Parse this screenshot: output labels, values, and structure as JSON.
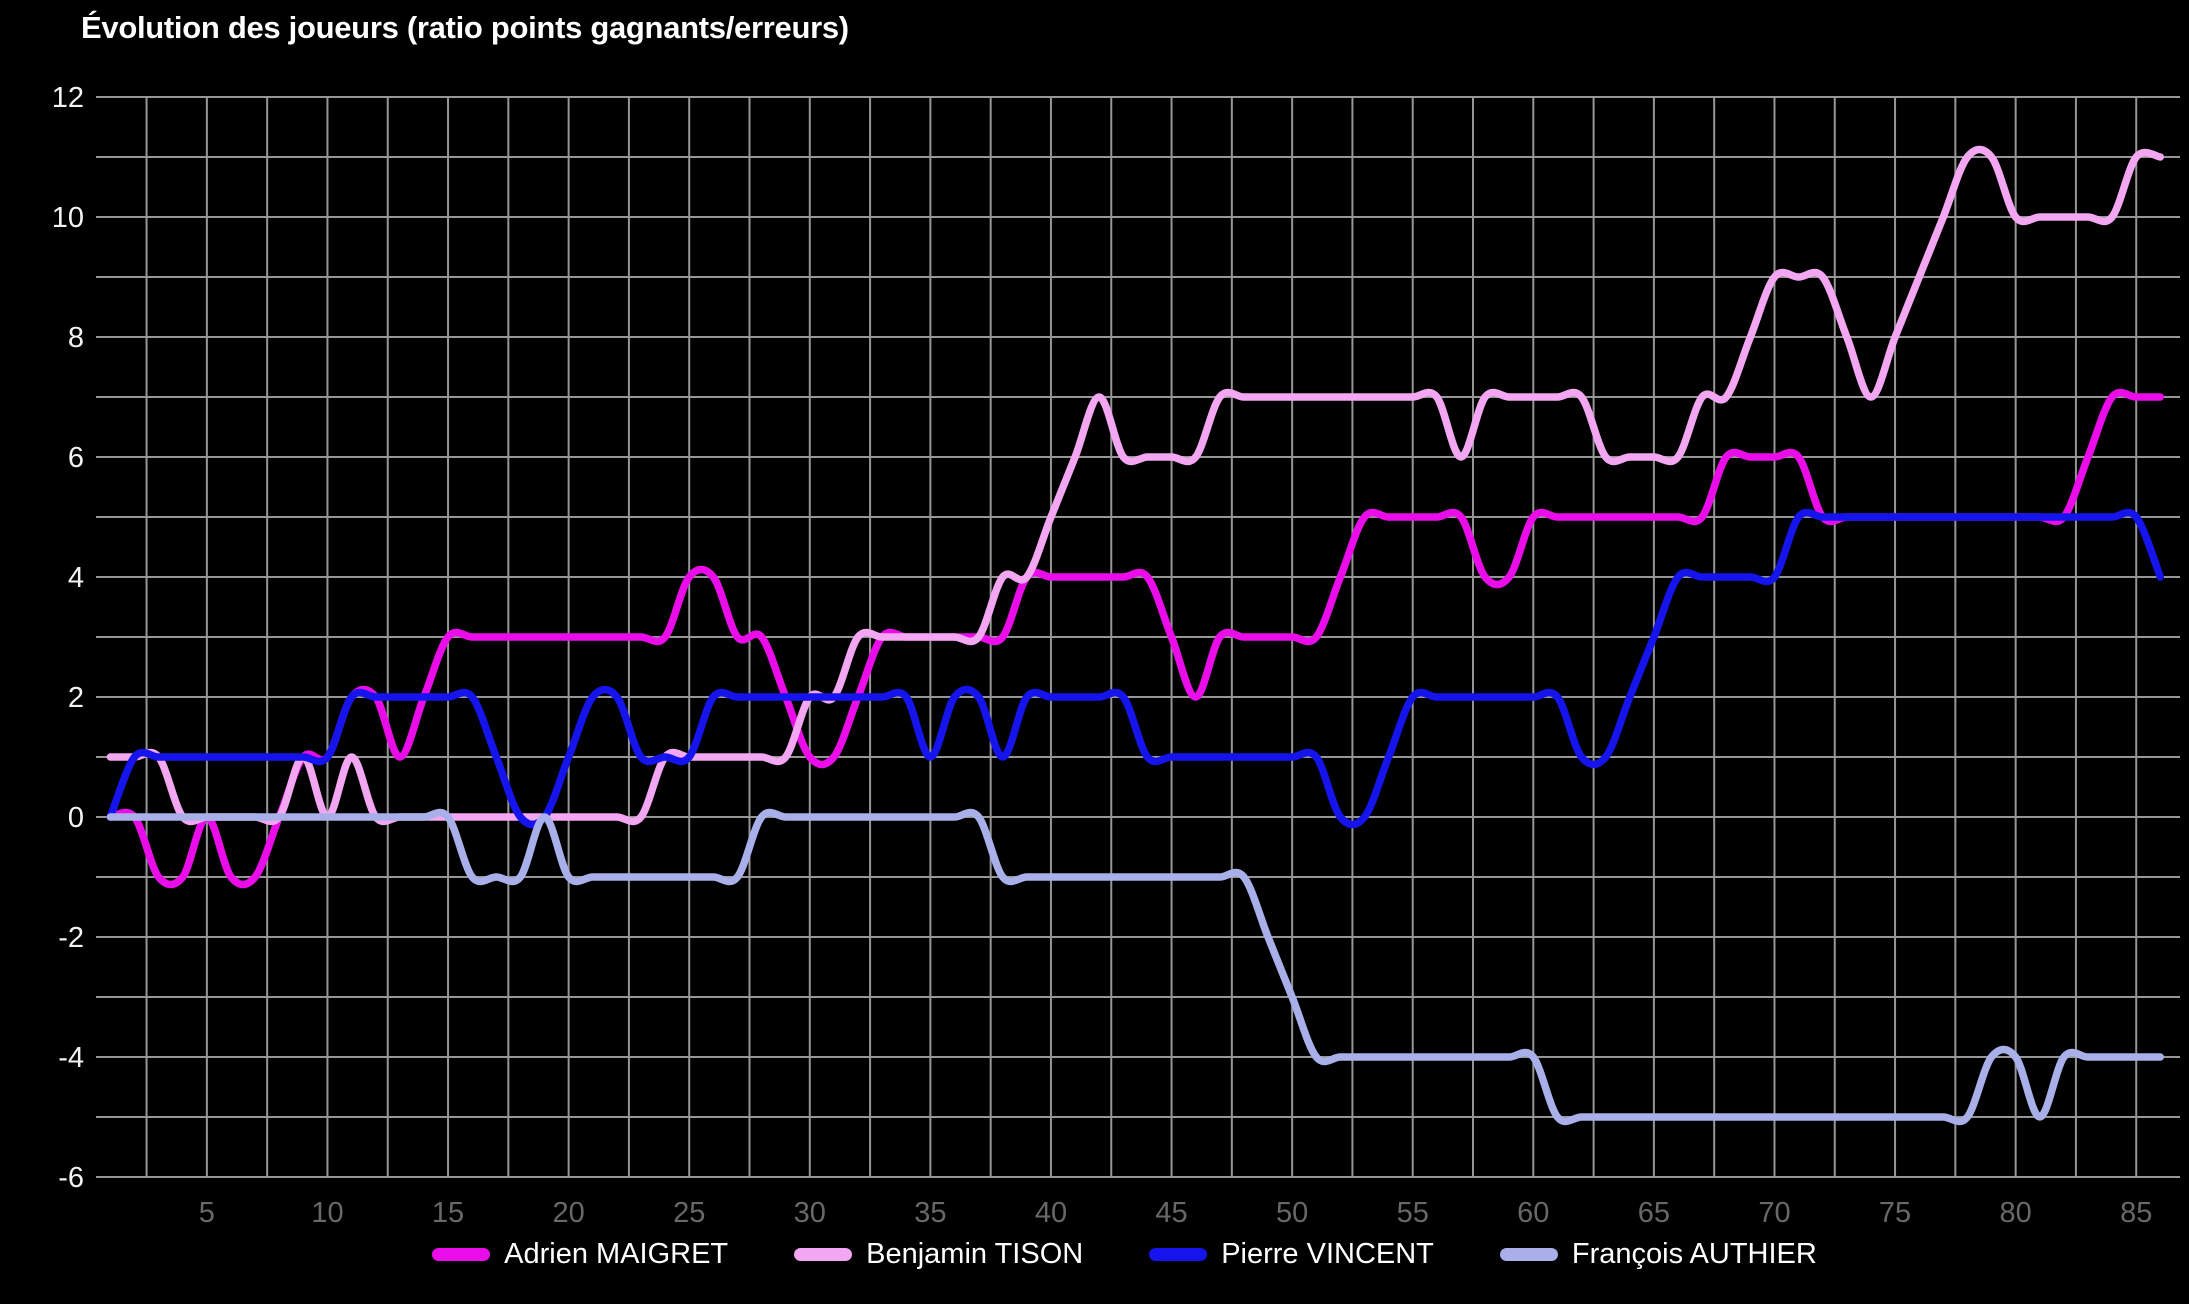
{
  "title": "Évolution des joueurs (ratio points gagnants/erreurs)",
  "chart_data": {
    "type": "line",
    "title": "Évolution des joueurs (ratio points gagnants/erreurs)",
    "xlabel": "",
    "ylabel": "",
    "xlim": [
      1,
      86
    ],
    "ylim": [
      -6,
      12
    ],
    "xticks": [
      5,
      10,
      15,
      20,
      25,
      30,
      35,
      40,
      45,
      50,
      55,
      60,
      65,
      70,
      75,
      80,
      85
    ],
    "yticks": [
      12,
      10,
      8,
      6,
      4,
      2,
      0,
      -2,
      -4,
      -6
    ],
    "grid": {
      "on": true,
      "x_interval": 2.5,
      "y_interval": 1
    },
    "legend_position": "bottom",
    "smoothing": "spline",
    "x": [
      1,
      2,
      3,
      4,
      5,
      6,
      7,
      8,
      9,
      10,
      11,
      12,
      13,
      14,
      15,
      16,
      17,
      18,
      19,
      20,
      21,
      22,
      23,
      24,
      25,
      26,
      27,
      28,
      29,
      30,
      31,
      32,
      33,
      34,
      35,
      36,
      37,
      38,
      39,
      40,
      41,
      42,
      43,
      44,
      45,
      46,
      47,
      48,
      49,
      50,
      51,
      52,
      53,
      54,
      55,
      56,
      57,
      58,
      59,
      60,
      61,
      62,
      63,
      64,
      65,
      66,
      67,
      68,
      69,
      70,
      71,
      72,
      73,
      74,
      75,
      76,
      77,
      78,
      79,
      80,
      81,
      82,
      83,
      84,
      85,
      86
    ],
    "series": [
      {
        "name": "Adrien MAIGRET",
        "color": "#EA0DEA",
        "values": [
          0,
          0,
          -1,
          -1,
          0,
          -1,
          -1,
          0,
          1,
          1,
          2,
          2,
          1,
          2,
          3,
          3,
          3,
          3,
          3,
          3,
          3,
          3,
          3,
          3,
          4,
          4,
          3,
          3,
          2,
          1,
          1,
          2,
          3,
          3,
          3,
          3,
          3,
          3,
          4,
          4,
          4,
          4,
          4,
          4,
          3,
          2,
          3,
          3,
          3,
          3,
          3,
          4,
          5,
          5,
          5,
          5,
          5,
          4,
          4,
          5,
          5,
          5,
          5,
          5,
          5,
          5,
          5,
          6,
          6,
          6,
          6,
          5,
          5,
          5,
          5,
          5,
          5,
          5,
          5,
          5,
          5,
          5,
          6,
          7,
          7,
          7
        ]
      },
      {
        "name": "Benjamin TISON",
        "color": "#F3A6F1",
        "values": [
          1,
          1,
          1,
          0,
          0,
          0,
          0,
          0,
          1,
          0,
          1,
          0,
          0,
          0,
          0,
          0,
          0,
          0,
          0,
          0,
          0,
          0,
          0,
          1,
          1,
          1,
          1,
          1,
          1,
          2,
          2,
          3,
          3,
          3,
          3,
          3,
          3,
          4,
          4,
          5,
          6,
          7,
          6,
          6,
          6,
          6,
          7,
          7,
          7,
          7,
          7,
          7,
          7,
          7,
          7,
          7,
          6,
          7,
          7,
          7,
          7,
          7,
          6,
          6,
          6,
          6,
          7,
          7,
          8,
          9,
          9,
          9,
          8,
          7,
          8,
          9,
          10,
          11,
          11,
          10,
          10,
          10,
          10,
          10,
          11,
          11
        ]
      },
      {
        "name": "Pierre VINCENT",
        "color": "#1614EC",
        "values": [
          0,
          1,
          1,
          1,
          1,
          1,
          1,
          1,
          1,
          1,
          2,
          2,
          2,
          2,
          2,
          2,
          1,
          0,
          0,
          1,
          2,
          2,
          1,
          1,
          1,
          2,
          2,
          2,
          2,
          2,
          2,
          2,
          2,
          2,
          1,
          2,
          2,
          1,
          2,
          2,
          2,
          2,
          2,
          1,
          1,
          1,
          1,
          1,
          1,
          1,
          1,
          0,
          0,
          1,
          2,
          2,
          2,
          2,
          2,
          2,
          2,
          1,
          1,
          2,
          3,
          4,
          4,
          4,
          4,
          4,
          5,
          5,
          5,
          5,
          5,
          5,
          5,
          5,
          5,
          5,
          5,
          5,
          5,
          5,
          5,
          4
        ]
      },
      {
        "name": "François AUTHIER",
        "color": "#A9AFE8",
        "values": [
          0,
          0,
          0,
          0,
          0,
          0,
          0,
          0,
          0,
          0,
          0,
          0,
          0,
          0,
          0,
          -1,
          -1,
          -1,
          0,
          -1,
          -1,
          -1,
          -1,
          -1,
          -1,
          -1,
          -1,
          0,
          0,
          0,
          0,
          0,
          0,
          0,
          0,
          0,
          0,
          -1,
          -1,
          -1,
          -1,
          -1,
          -1,
          -1,
          -1,
          -1,
          -1,
          -1,
          -2,
          -3,
          -4,
          -4,
          -4,
          -4,
          -4,
          -4,
          -4,
          -4,
          -4,
          -4,
          -5,
          -5,
          -5,
          -5,
          -5,
          -5,
          -5,
          -5,
          -5,
          -5,
          -5,
          -5,
          -5,
          -5,
          -5,
          -5,
          -5,
          -5,
          -4,
          -4,
          -5,
          -4,
          -4,
          -4,
          -4,
          -4
        ]
      }
    ],
    "style": {
      "background": "#000000",
      "grid_color": "#969696",
      "y_tick_color": "#f2f2f2",
      "x_tick_color": "#686868",
      "line_width": 7.5
    }
  }
}
